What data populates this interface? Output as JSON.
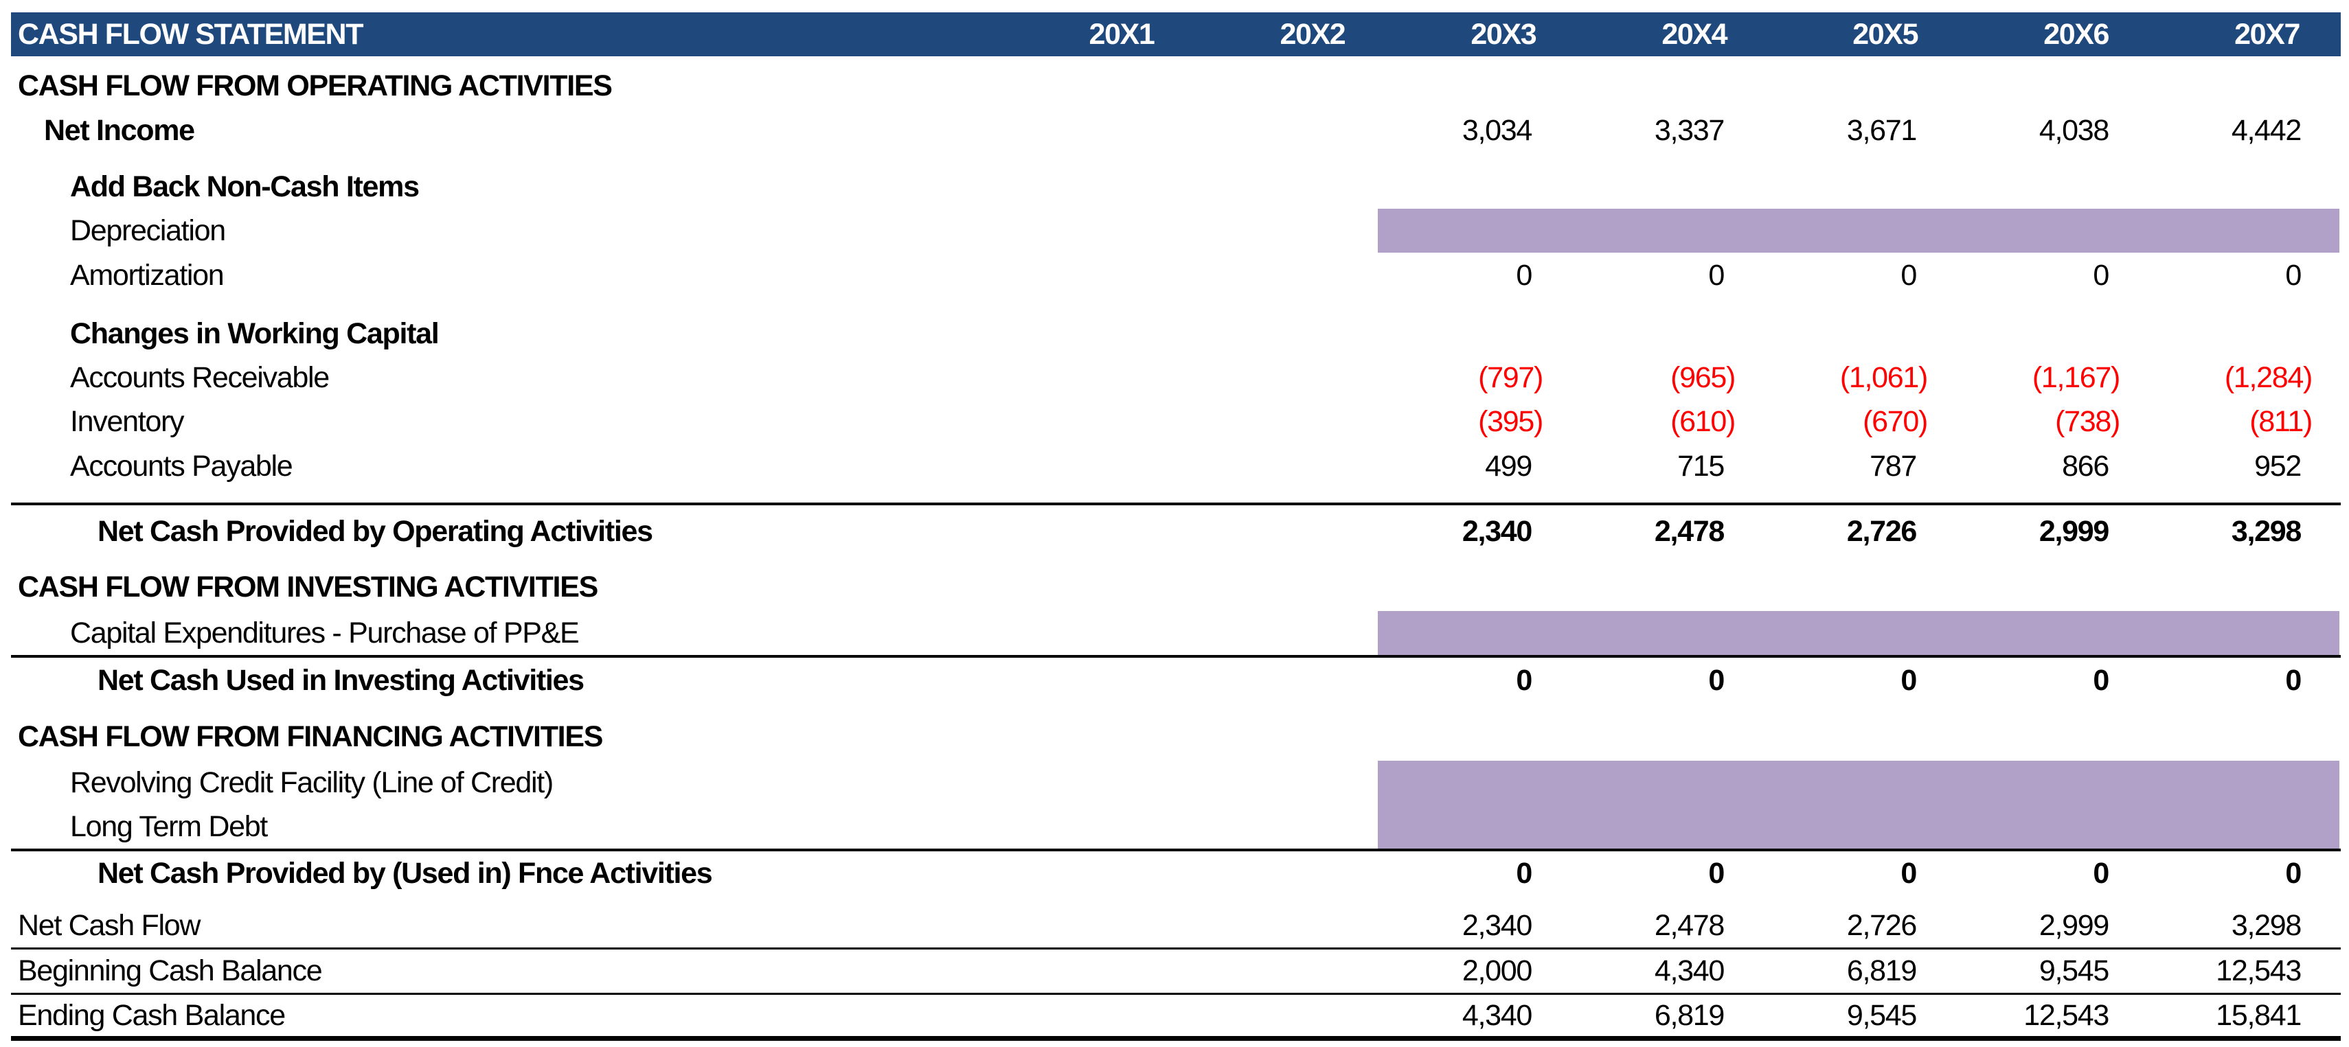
{
  "header": {
    "title": "CASH FLOW STATEMENT",
    "years": [
      "20X1",
      "20X2",
      "20X3",
      "20X4",
      "20X5",
      "20X6",
      "20X7"
    ]
  },
  "colors": {
    "header_bg": "#1f497d",
    "input_shade": "#b1a0c7",
    "negative": "#ff0000"
  },
  "rows": [
    {
      "label": "CASH FLOW FROM OPERATING ACTIVITIES",
      "values": []
    },
    {
      "label": "Net Income",
      "values": [
        "3,034",
        "3,337",
        "3,671",
        "4,038",
        "4,442"
      ]
    },
    {
      "label": "Add Back Non-Cash Items",
      "values": []
    },
    {
      "label": "Depreciation",
      "values": []
    },
    {
      "label": "Amortization",
      "values": [
        "0",
        "0",
        "0",
        "0",
        "0"
      ]
    },
    {
      "label": "Changes in Working Capital",
      "values": []
    },
    {
      "label": "Accounts Receivable",
      "values": [
        "(797)",
        "(965)",
        "(1,061)",
        "(1,167)",
        "(1,284)"
      ]
    },
    {
      "label": "Inventory",
      "values": [
        "(395)",
        "(610)",
        "(670)",
        "(738)",
        "(811)"
      ]
    },
    {
      "label": "Accounts Payable",
      "values": [
        "499",
        "715",
        "787",
        "866",
        "952"
      ]
    },
    {
      "label": "Net Cash Provided by Operating Activities",
      "values": [
        "2,340",
        "2,478",
        "2,726",
        "2,999",
        "3,298"
      ]
    },
    {
      "label": "CASH FLOW FROM INVESTING ACTIVITIES",
      "values": []
    },
    {
      "label": "Capital Expenditures - Purchase of PP&E",
      "values": []
    },
    {
      "label": "Net Cash Used in Investing Activities",
      "values": [
        "0",
        "0",
        "0",
        "0",
        "0"
      ]
    },
    {
      "label": "CASH FLOW FROM FINANCING ACTIVITIES",
      "values": []
    },
    {
      "label": "Revolving Credit Facility (Line of Credit)",
      "values": []
    },
    {
      "label": "Long Term Debt",
      "values": []
    },
    {
      "label": "Net Cash Provided by (Used in) Fnce Activities",
      "values": [
        "0",
        "0",
        "0",
        "0",
        "0"
      ]
    },
    {
      "label": "Net Cash Flow",
      "values": [
        "2,340",
        "2,478",
        "2,726",
        "2,999",
        "3,298"
      ]
    },
    {
      "label": "Beginning Cash Balance",
      "values": [
        "2,000",
        "4,340",
        "6,819",
        "9,545",
        "12,543"
      ]
    },
    {
      "label": "Ending Cash Balance",
      "values": [
        "4,340",
        "6,819",
        "9,545",
        "12,543",
        "15,841"
      ]
    }
  ]
}
